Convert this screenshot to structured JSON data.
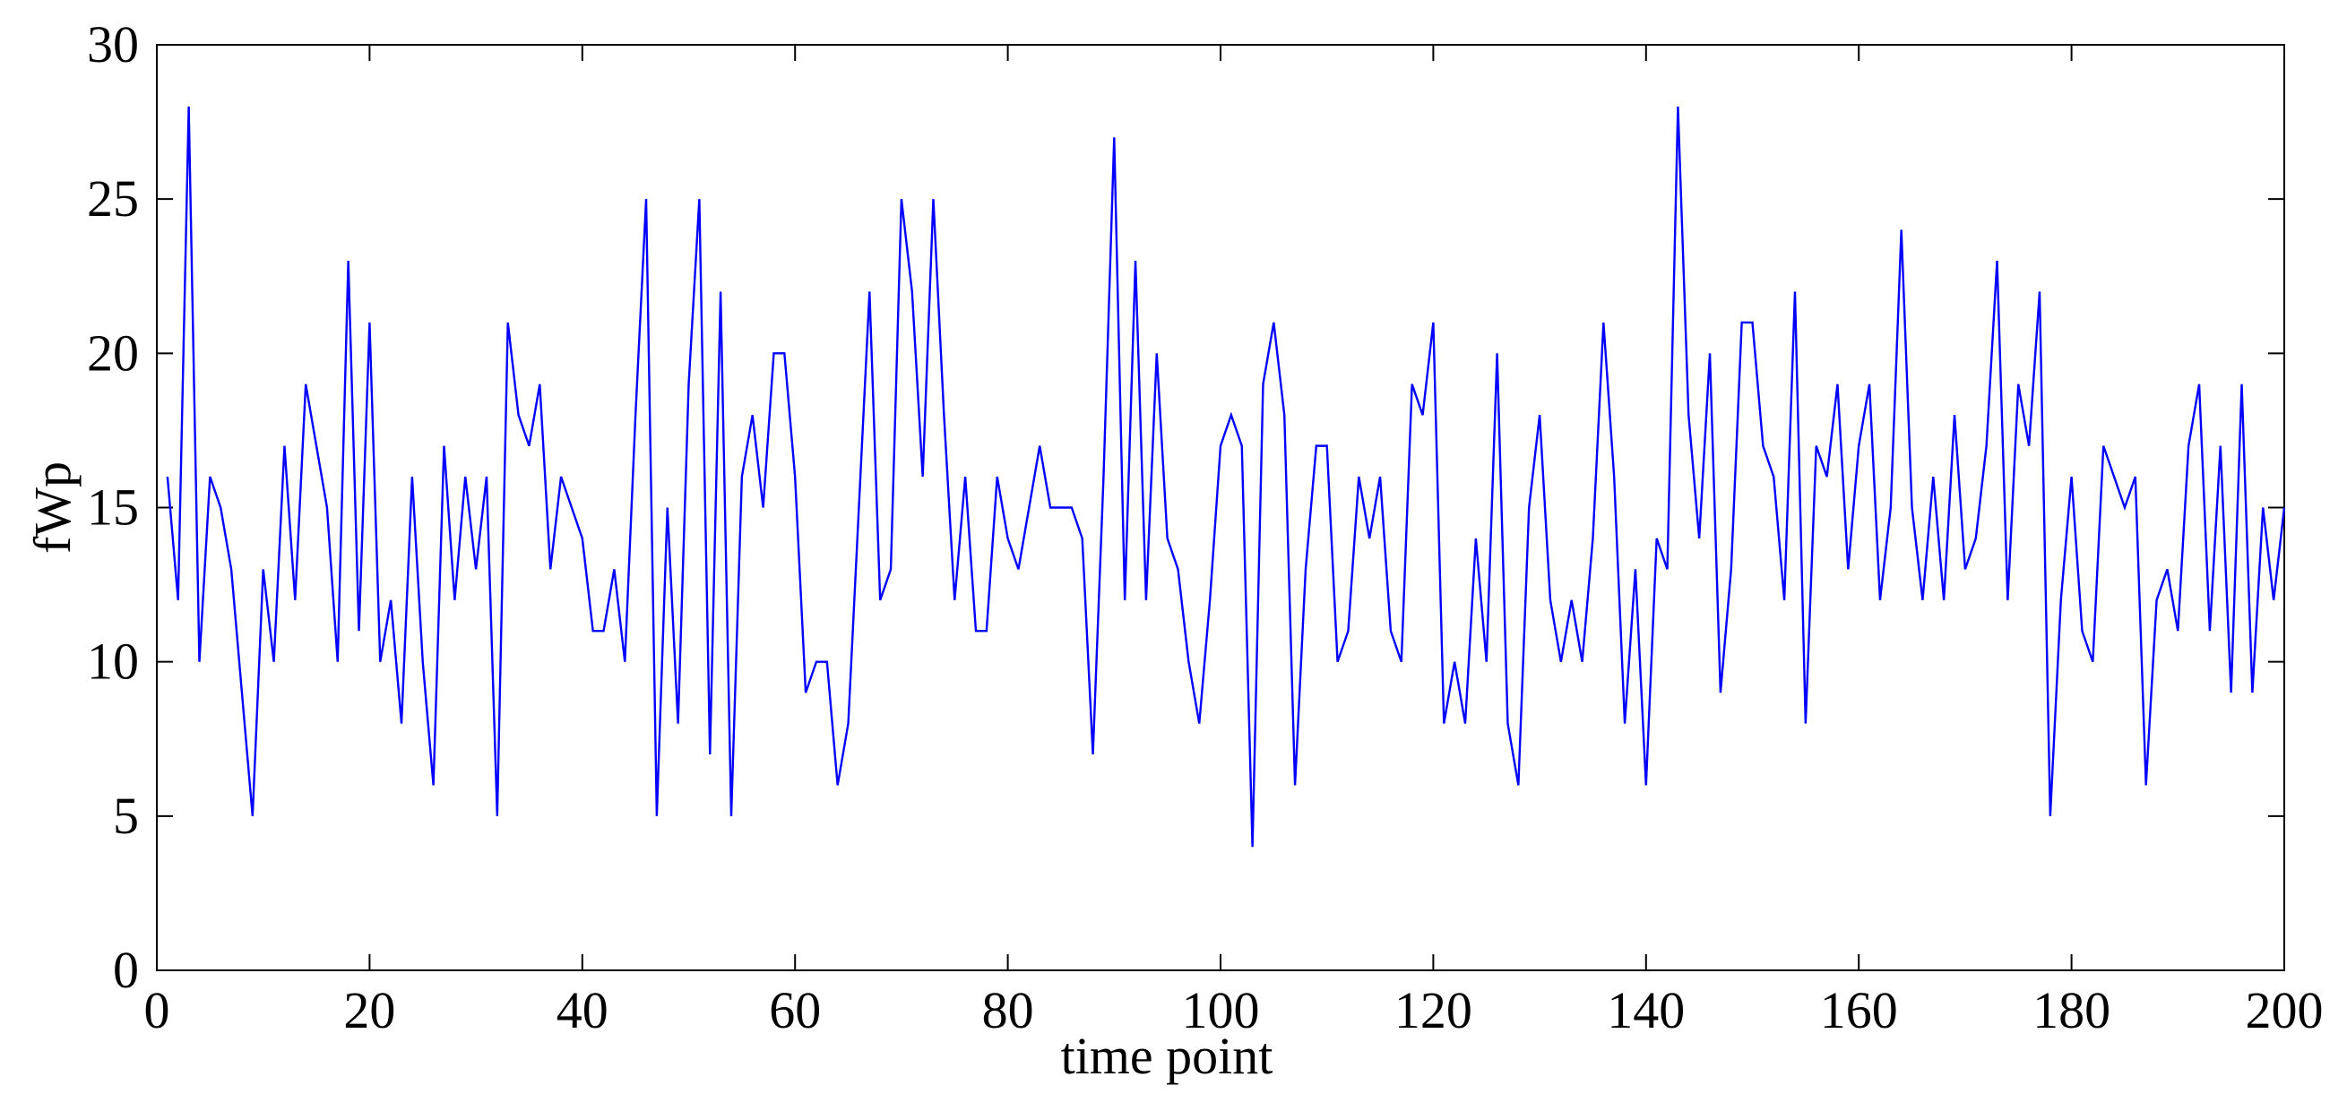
{
  "chart_data": {
    "type": "line",
    "title": "",
    "xlabel": "time point",
    "ylabel": "fWp",
    "xlim": [
      0,
      200
    ],
    "ylim": [
      0,
      30
    ],
    "xticks": [
      0,
      20,
      40,
      60,
      80,
      100,
      120,
      140,
      160,
      180,
      200
    ],
    "xtick_labels": [
      "0",
      "20",
      "40",
      "60",
      "80",
      "100",
      "120",
      "140",
      "160",
      "180",
      "200"
    ],
    "yticks": [
      0,
      5,
      10,
      15,
      20,
      25,
      30
    ],
    "ytick_labels": [
      "0",
      "5",
      "10",
      "15",
      "20",
      "25",
      "30"
    ],
    "grid": false,
    "legend": "none",
    "series": [
      {
        "color": "#0000ff",
        "x": [
          1,
          2,
          3,
          4,
          5,
          6,
          7,
          8,
          9,
          10,
          11,
          12,
          13,
          14,
          15,
          16,
          17,
          18,
          19,
          20,
          21,
          22,
          23,
          24,
          25,
          26,
          27,
          28,
          29,
          30,
          31,
          32,
          33,
          34,
          35,
          36,
          37,
          38,
          39,
          40,
          41,
          42,
          43,
          44,
          45,
          46,
          47,
          48,
          49,
          50,
          51,
          52,
          53,
          54,
          55,
          56,
          57,
          58,
          59,
          60,
          61,
          62,
          63,
          64,
          65,
          66,
          67,
          68,
          69,
          70,
          71,
          72,
          73,
          74,
          75,
          76,
          77,
          78,
          79,
          80,
          81,
          82,
          83,
          84,
          85,
          86,
          87,
          88,
          89,
          90,
          91,
          92,
          93,
          94,
          95,
          96,
          97,
          98,
          99,
          100,
          101,
          102,
          103,
          104,
          105,
          106,
          107,
          108,
          109,
          110,
          111,
          112,
          113,
          114,
          115,
          116,
          117,
          118,
          119,
          120,
          121,
          122,
          123,
          124,
          125,
          126,
          127,
          128,
          129,
          130,
          131,
          132,
          133,
          134,
          135,
          136,
          137,
          138,
          139,
          140,
          141,
          142,
          143,
          144,
          145,
          146,
          147,
          148,
          149,
          150,
          151,
          152,
          153,
          154,
          155,
          156,
          157,
          158,
          159,
          160,
          161,
          162,
          163,
          164,
          165,
          166,
          167,
          168,
          169,
          170,
          171,
          172,
          173,
          174,
          175,
          176,
          177,
          178,
          179,
          180,
          181,
          182,
          183,
          184,
          185,
          186,
          187,
          188,
          189,
          190,
          191,
          192,
          193,
          194,
          195,
          196,
          197,
          198,
          199,
          200
        ],
        "values": [
          16,
          12,
          28,
          10,
          16,
          15,
          13,
          9,
          5,
          13,
          10,
          17,
          12,
          19,
          17,
          15,
          10,
          23,
          11,
          21,
          10,
          12,
          8,
          16,
          10,
          6,
          17,
          12,
          16,
          13,
          16,
          5,
          21,
          18,
          17,
          19,
          13,
          16,
          15,
          14,
          11,
          11,
          13,
          10,
          18,
          25,
          5,
          15,
          8,
          19,
          25,
          7,
          22,
          5,
          16,
          18,
          15,
          20,
          20,
          16,
          9,
          10,
          10,
          6,
          8,
          15,
          22,
          12,
          13,
          25,
          22,
          16,
          25,
          18,
          12,
          16,
          11,
          11,
          16,
          14,
          13,
          15,
          17,
          15,
          15,
          15,
          14,
          7,
          16,
          27,
          12,
          23,
          12,
          20,
          14,
          13,
          10,
          8,
          12,
          17,
          18,
          17,
          4,
          19,
          21,
          18,
          6,
          13,
          17,
          17,
          10,
          11,
          16,
          14,
          16,
          11,
          10,
          19,
          18,
          21,
          8,
          10,
          8,
          14,
          10,
          20,
          8,
          6,
          15,
          18,
          12,
          10,
          12,
          10,
          14,
          21,
          16,
          8,
          13,
          6,
          14,
          13,
          28,
          18,
          14,
          20,
          9,
          13,
          21,
          21,
          17,
          16,
          12,
          22,
          8,
          17,
          16,
          19,
          13,
          17,
          19,
          12,
          15,
          24,
          15,
          12,
          16,
          12,
          18,
          13,
          14,
          17,
          23,
          12,
          19,
          17,
          22,
          5,
          12,
          16,
          11,
          10,
          17,
          16,
          15,
          16,
          6,
          12,
          13,
          11,
          17,
          19,
          11,
          17,
          9,
          19,
          9,
          15,
          12,
          15
        ]
      }
    ]
  }
}
